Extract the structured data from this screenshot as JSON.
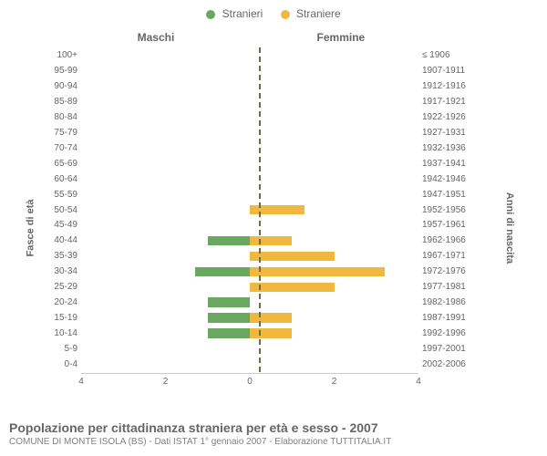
{
  "chart": {
    "type": "population-pyramid",
    "legend": [
      {
        "label": "Stranieri",
        "color": "#6aa760"
      },
      {
        "label": "Straniere",
        "color": "#f1b840"
      }
    ],
    "column_headers": {
      "left": "Maschi",
      "right": "Femmine"
    },
    "axis_titles": {
      "left": "Fasce di età",
      "right": "Anni di nascita"
    },
    "x": {
      "max": 4,
      "ticks": [
        4,
        2,
        0,
        2,
        4
      ]
    },
    "background_color": "#ffffff",
    "bar_colors": {
      "male": "#6aa760",
      "female": "#f1b840"
    },
    "centerline_color": "#6b6b47",
    "rows": [
      {
        "age": "100+",
        "birth": "≤ 1906",
        "male": 0,
        "female": 0
      },
      {
        "age": "95-99",
        "birth": "1907-1911",
        "male": 0,
        "female": 0
      },
      {
        "age": "90-94",
        "birth": "1912-1916",
        "male": 0,
        "female": 0
      },
      {
        "age": "85-89",
        "birth": "1917-1921",
        "male": 0,
        "female": 0
      },
      {
        "age": "80-84",
        "birth": "1922-1926",
        "male": 0,
        "female": 0
      },
      {
        "age": "75-79",
        "birth": "1927-1931",
        "male": 0,
        "female": 0
      },
      {
        "age": "70-74",
        "birth": "1932-1936",
        "male": 0,
        "female": 0
      },
      {
        "age": "65-69",
        "birth": "1937-1941",
        "male": 0,
        "female": 0
      },
      {
        "age": "60-64",
        "birth": "1942-1946",
        "male": 0,
        "female": 0
      },
      {
        "age": "55-59",
        "birth": "1947-1951",
        "male": 0,
        "female": 0
      },
      {
        "age": "50-54",
        "birth": "1952-1956",
        "male": 0,
        "female": 1.3
      },
      {
        "age": "45-49",
        "birth": "1957-1961",
        "male": 0,
        "female": 0
      },
      {
        "age": "40-44",
        "birth": "1962-1966",
        "male": 1.0,
        "female": 1.0
      },
      {
        "age": "35-39",
        "birth": "1967-1971",
        "male": 0,
        "female": 2.0
      },
      {
        "age": "30-34",
        "birth": "1972-1976",
        "male": 1.3,
        "female": 3.2
      },
      {
        "age": "25-29",
        "birth": "1977-1981",
        "male": 0,
        "female": 2.0
      },
      {
        "age": "20-24",
        "birth": "1982-1986",
        "male": 1.0,
        "female": 0
      },
      {
        "age": "15-19",
        "birth": "1987-1991",
        "male": 1.0,
        "female": 1.0
      },
      {
        "age": "10-14",
        "birth": "1992-1996",
        "male": 1.0,
        "female": 1.0
      },
      {
        "age": "5-9",
        "birth": "1997-2001",
        "male": 0,
        "female": 0
      },
      {
        "age": "0-4",
        "birth": "2002-2006",
        "male": 0,
        "female": 0
      }
    ]
  },
  "footer": {
    "title": "Popolazione per cittadinanza straniera per età e sesso - 2007",
    "subtitle": "COMUNE DI MONTE ISOLA (BS) - Dati ISTAT 1° gennaio 2007 - Elaborazione TUTTITALIA.IT"
  }
}
